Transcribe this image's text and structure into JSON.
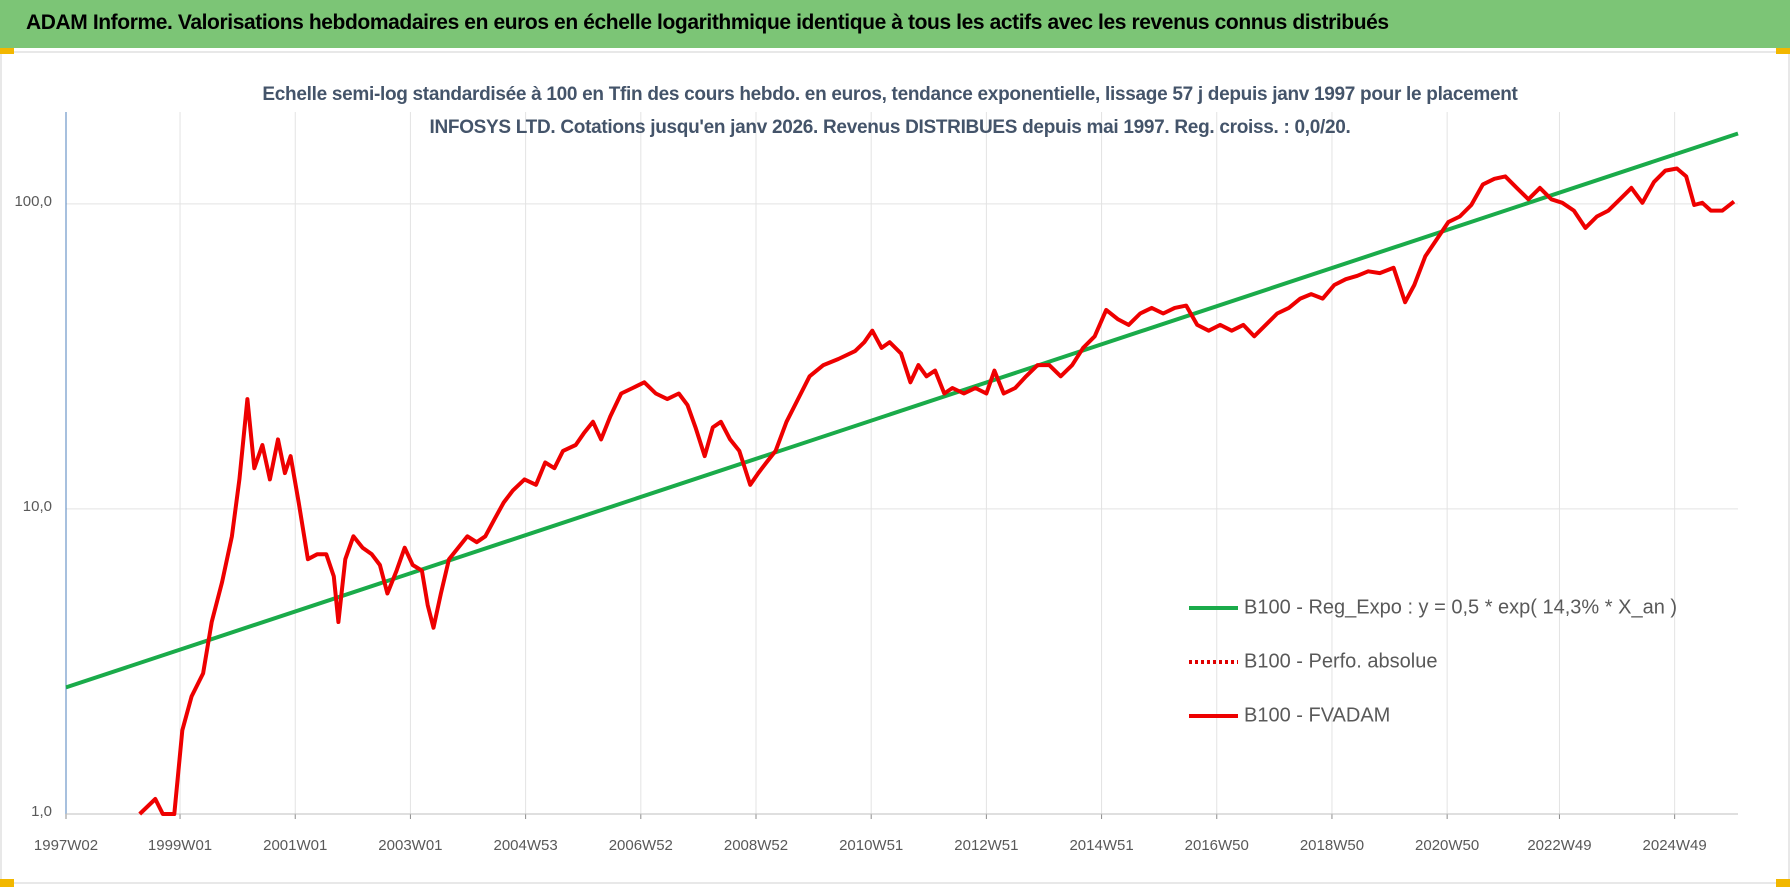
{
  "header": {
    "title": "ADAM Informe. Valorisations hebdomadaires en euros en échelle logarithmique identique à tous les actifs avec les revenus connus distribués"
  },
  "chart_data": {
    "type": "line",
    "subtitle": "Echelle semi-log standardisée à 100 en Tfin des cours hebdo. en euros, tendance exponentielle, lissage 57 j depuis janv 1997 pour le placement INFOSYS LTD. Cotations jusqu'en janv 2026. Revenus DISTRIBUES depuis mai 1997. Reg. croiss. : 0,0/20.",
    "log_scale": true,
    "grid": true,
    "xlim": [
      1997.02,
      2026.05
    ],
    "ylim": [
      1,
      200
    ],
    "yticks": [
      {
        "value": 1,
        "label": "1,0"
      },
      {
        "value": 10,
        "label": "10,0"
      },
      {
        "value": 100,
        "label": "100,0"
      }
    ],
    "xticks": [
      {
        "value": 1997.02,
        "label": "1997W02"
      },
      {
        "value": 1999.0,
        "label": "1999W01"
      },
      {
        "value": 2001.0,
        "label": "2001W01"
      },
      {
        "value": 2003.0,
        "label": "2003W01"
      },
      {
        "value": 2005.0,
        "label": "2004W53"
      },
      {
        "value": 2007.0,
        "label": "2006W52"
      },
      {
        "value": 2009.0,
        "label": "2008W52"
      },
      {
        "value": 2011.0,
        "label": "2010W51"
      },
      {
        "value": 2013.0,
        "label": "2012W51"
      },
      {
        "value": 2015.0,
        "label": "2014W51"
      },
      {
        "value": 2017.0,
        "label": "2016W50"
      },
      {
        "value": 2019.0,
        "label": "2018W50"
      },
      {
        "value": 2021.0,
        "label": "2020W50"
      },
      {
        "value": 2022.95,
        "label": "2022W49"
      },
      {
        "value": 2024.95,
        "label": "2024W49"
      }
    ],
    "series": [
      {
        "name": "B100 - Reg_Expo : y = 0,5 * exp( 14,3% *  X_an )",
        "color": "#1aab4a",
        "line_style": "solid",
        "x": [
          1997.02,
          2026.05
        ],
        "values": [
          2.6,
          170
        ]
      },
      {
        "name": "B100 - Perfo. absolue",
        "color": "#e00000",
        "line_style": "dotted",
        "x": [],
        "values": []
      },
      {
        "name": "B100 - FVADAM",
        "color": "#ee0000",
        "line_style": "solid",
        "x": [
          1998.3,
          1998.57,
          1998.7,
          1998.9,
          1999.04,
          1999.2,
          1999.4,
          1999.55,
          1999.73,
          1999.9,
          2000.03,
          2000.17,
          2000.29,
          2000.43,
          2000.56,
          2000.7,
          2000.82,
          2000.92,
          2001.06,
          2001.22,
          2001.38,
          2001.54,
          2001.67,
          2001.75,
          2001.87,
          2002.01,
          2002.17,
          2002.33,
          2002.47,
          2002.6,
          2002.76,
          2002.9,
          2003.04,
          2003.2,
          2003.3,
          2003.4,
          2003.53,
          2003.67,
          2003.83,
          2003.99,
          2004.15,
          2004.3,
          2004.46,
          2004.62,
          2004.78,
          2004.98,
          2005.18,
          2005.34,
          2005.5,
          2005.65,
          2005.87,
          2006.01,
          2006.17,
          2006.31,
          2006.47,
          2006.66,
          2006.86,
          2007.06,
          2007.26,
          2007.46,
          2007.66,
          2007.81,
          2007.95,
          2008.11,
          2008.25,
          2008.39,
          2008.55,
          2008.71,
          2008.9,
          2009.04,
          2009.18,
          2009.34,
          2009.53,
          2009.73,
          2009.93,
          2010.17,
          2010.43,
          2010.72,
          2010.88,
          2011.02,
          2011.18,
          2011.32,
          2011.52,
          2011.68,
          2011.82,
          2011.96,
          2012.11,
          2012.27,
          2012.41,
          2012.61,
          2012.81,
          2013.0,
          2013.14,
          2013.3,
          2013.5,
          2013.69,
          2013.89,
          2014.09,
          2014.29,
          2014.49,
          2014.68,
          2014.88,
          2015.08,
          2015.28,
          2015.47,
          2015.67,
          2015.87,
          2016.07,
          2016.27,
          2016.47,
          2016.66,
          2016.86,
          2017.06,
          2017.26,
          2017.46,
          2017.65,
          2017.85,
          2018.05,
          2018.25,
          2018.45,
          2018.64,
          2018.84,
          2019.04,
          2019.24,
          2019.44,
          2019.63,
          2019.83,
          2020.07,
          2020.27,
          2020.43,
          2020.62,
          2020.82,
          2021.02,
          2021.22,
          2021.42,
          2021.62,
          2021.82,
          2022.01,
          2022.21,
          2022.41,
          2022.61,
          2022.81,
          2023.0,
          2023.2,
          2023.4,
          2023.6,
          2023.8,
          2024.0,
          2024.2,
          2024.39,
          2024.59,
          2024.79,
          2024.99,
          2025.15,
          2025.29,
          2025.43,
          2025.58,
          2025.78,
          2025.98
        ],
        "values": [
          1.0,
          1.12,
          1.0,
          1.0,
          1.88,
          2.43,
          2.89,
          4.26,
          5.76,
          8.13,
          12.5,
          22.9,
          13.6,
          16.2,
          12.5,
          16.9,
          13.1,
          14.9,
          10.5,
          6.84,
          7.1,
          7.1,
          6.01,
          4.26,
          6.84,
          8.13,
          7.46,
          7.1,
          6.55,
          5.28,
          6.28,
          7.46,
          6.55,
          6.28,
          4.84,
          4.08,
          5.28,
          6.84,
          7.46,
          8.13,
          7.78,
          8.13,
          9.25,
          10.5,
          11.5,
          12.5,
          12.0,
          14.2,
          13.6,
          15.5,
          16.2,
          17.7,
          19.3,
          16.9,
          20.1,
          23.9,
          24.9,
          26.0,
          23.9,
          22.9,
          23.9,
          21.9,
          18.5,
          14.9,
          18.5,
          19.3,
          16.9,
          15.5,
          12.0,
          13.1,
          14.2,
          15.5,
          19.3,
          22.9,
          27.2,
          29.6,
          31.0,
          32.9,
          35.2,
          38.4,
          33.7,
          35.2,
          32.3,
          26.0,
          29.6,
          27.2,
          28.4,
          23.9,
          24.9,
          23.9,
          24.9,
          23.9,
          28.4,
          23.9,
          24.9,
          27.2,
          29.6,
          29.6,
          27.2,
          29.6,
          33.7,
          36.8,
          44.9,
          41.9,
          40.1,
          43.7,
          45.6,
          43.7,
          45.6,
          46.4,
          40.1,
          38.4,
          40.1,
          38.4,
          40.1,
          36.8,
          40.1,
          43.7,
          45.6,
          48.9,
          50.6,
          48.9,
          54.2,
          56.6,
          58.1,
          60.1,
          59.3,
          61.7,
          47.6,
          54.2,
          67.3,
          76.6,
          87.1,
          90.9,
          99.1,
          115.8,
          120.8,
          123,
          112.8,
          103.5,
          112.8,
          103.5,
          100.8,
          95.0,
          83.4,
          90.9,
          95.0,
          103.5,
          112.8,
          100.8,
          117.8,
          128.5,
          130.6,
          123,
          99.1,
          100.8,
          95.0,
          95.0,
          101.7
        ]
      }
    ]
  }
}
